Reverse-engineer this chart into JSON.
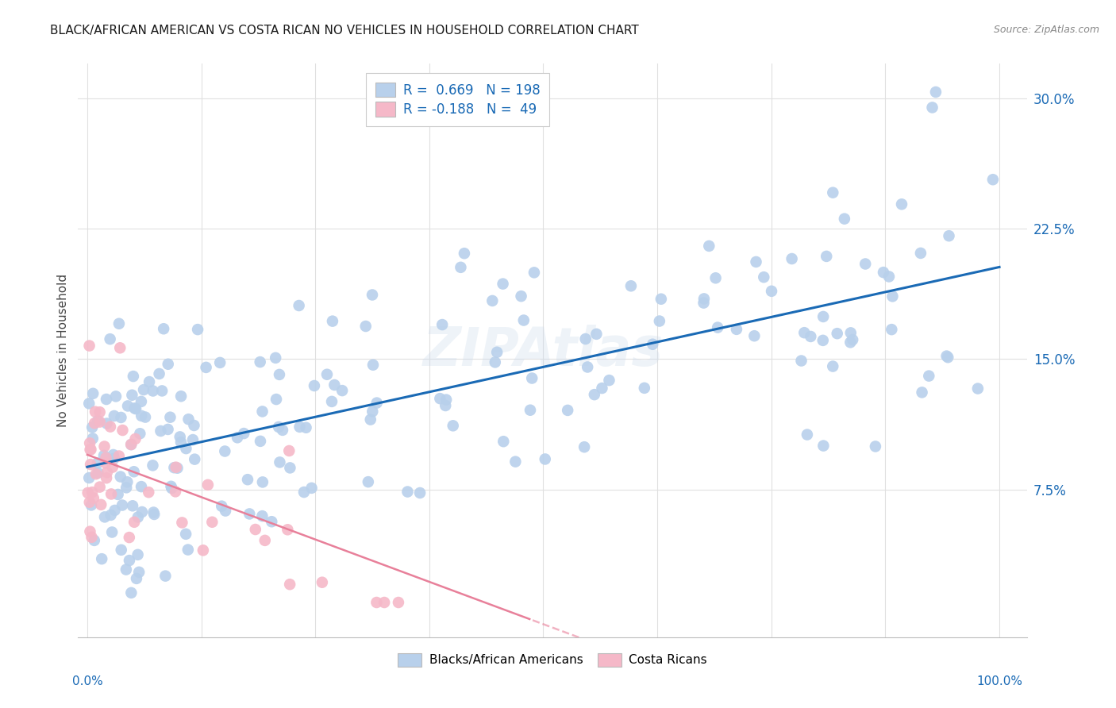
{
  "title": "BLACK/AFRICAN AMERICAN VS COSTA RICAN NO VEHICLES IN HOUSEHOLD CORRELATION CHART",
  "source": "Source: ZipAtlas.com",
  "ylabel": "No Vehicles in Household",
  "blue_R": 0.669,
  "blue_N": 198,
  "pink_R": -0.188,
  "pink_N": 49,
  "blue_color": "#b8d0eb",
  "blue_line_color": "#1a6ab5",
  "pink_color": "#f5b8c8",
  "pink_line_color": "#e8809a",
  "watermark": "ZIPAtlas",
  "legend_label_blue": "Blacks/African Americans",
  "legend_label_pink": "Costa Ricans",
  "background_color": "#ffffff",
  "grid_color": "#e0e0e0",
  "xlim": [
    -1,
    103
  ],
  "ylim": [
    -0.01,
    0.32
  ],
  "blue_slope": 0.00115,
  "blue_intercept": 0.088,
  "pink_slope": -0.00195,
  "pink_intercept": 0.095,
  "ytick_vals": [
    0.075,
    0.15,
    0.225,
    0.3
  ],
  "ytick_labels": [
    "7.5%",
    "15.0%",
    "22.5%",
    "30.0%"
  ]
}
